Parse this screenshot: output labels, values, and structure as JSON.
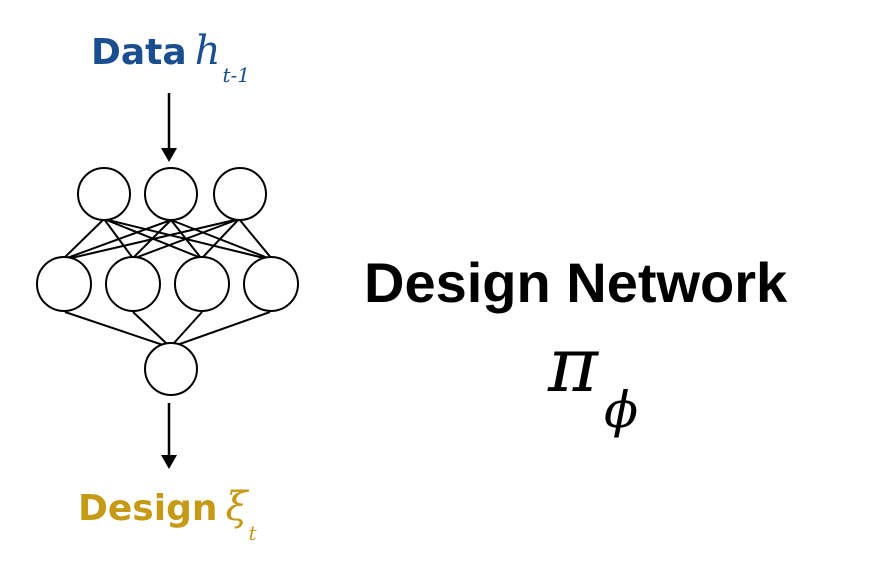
{
  "input": {
    "word": "Data",
    "symbol": "h",
    "subscript": "t-1",
    "color": "#1b4e8f"
  },
  "output": {
    "word": "Design",
    "symbol": "ξ",
    "subscript": "t",
    "color": "#c49a16"
  },
  "network": {
    "title": "Design Network",
    "symbol": "π",
    "subscript": "ϕ",
    "layers": [
      3,
      4,
      1
    ]
  }
}
